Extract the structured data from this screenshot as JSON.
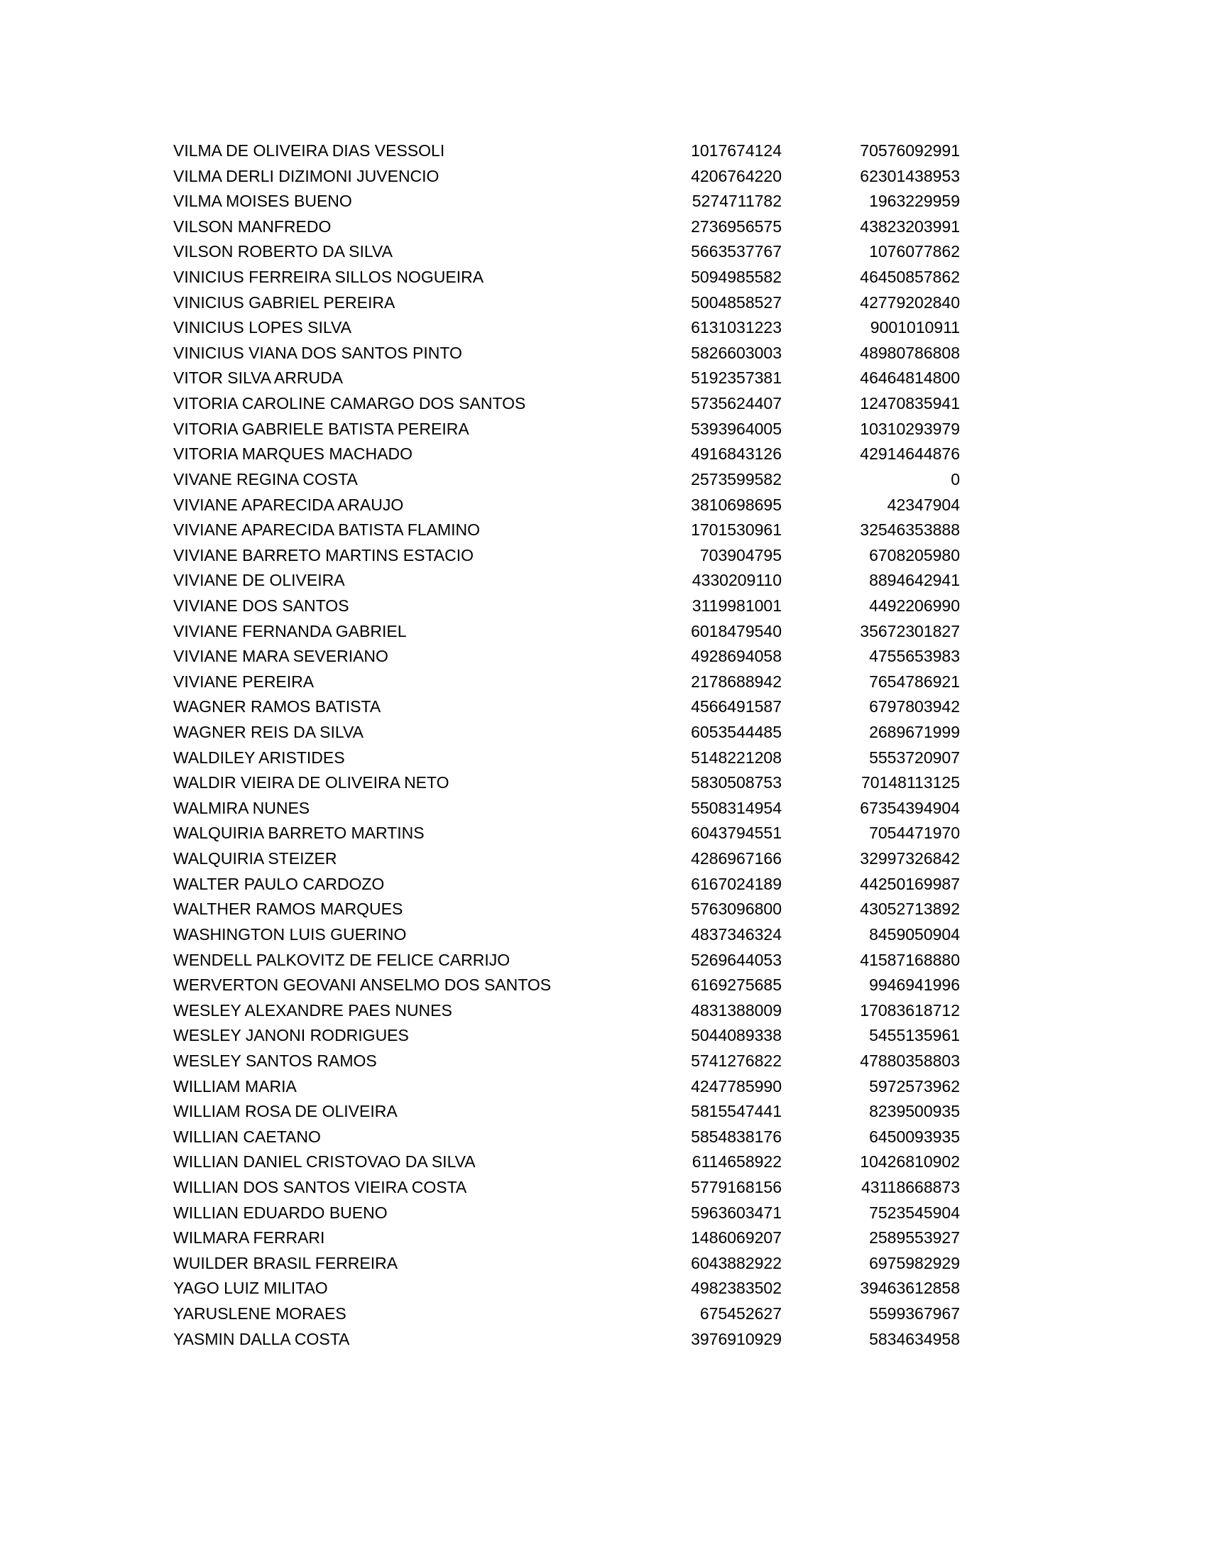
{
  "rows": [
    [
      "VILMA DE OLIVEIRA DIAS VESSOLI",
      "1017674124",
      "70576092991"
    ],
    [
      "VILMA DERLI DIZIMONI JUVENCIO",
      "4206764220",
      "62301438953"
    ],
    [
      "VILMA MOISES BUENO",
      "5274711782",
      "1963229959"
    ],
    [
      "VILSON MANFREDO",
      "2736956575",
      "43823203991"
    ],
    [
      "VILSON ROBERTO DA SILVA",
      "5663537767",
      "1076077862"
    ],
    [
      "VINICIUS FERREIRA SILLOS NOGUEIRA",
      "5094985582",
      "46450857862"
    ],
    [
      "VINICIUS GABRIEL PEREIRA",
      "5004858527",
      "42779202840"
    ],
    [
      "VINICIUS LOPES SILVA",
      "6131031223",
      "9001010911"
    ],
    [
      "VINICIUS VIANA DOS SANTOS PINTO",
      "5826603003",
      "48980786808"
    ],
    [
      "VITOR SILVA ARRUDA",
      "5192357381",
      "46464814800"
    ],
    [
      "VITORIA CAROLINE CAMARGO DOS SANTOS",
      "5735624407",
      "12470835941"
    ],
    [
      "VITORIA GABRIELE BATISTA PEREIRA",
      "5393964005",
      "10310293979"
    ],
    [
      "VITORIA MARQUES MACHADO",
      "4916843126",
      "42914644876"
    ],
    [
      "VIVANE REGINA COSTA",
      "2573599582",
      "0"
    ],
    [
      "VIVIANE APARECIDA ARAUJO",
      "3810698695",
      "42347904"
    ],
    [
      "VIVIANE APARECIDA BATISTA FLAMINO",
      "1701530961",
      "32546353888"
    ],
    [
      "VIVIANE BARRETO MARTINS ESTACIO",
      "703904795",
      "6708205980"
    ],
    [
      "VIVIANE DE OLIVEIRA",
      "4330209110",
      "8894642941"
    ],
    [
      "VIVIANE DOS SANTOS",
      "3119981001",
      "4492206990"
    ],
    [
      "VIVIANE FERNANDA GABRIEL",
      "6018479540",
      "35672301827"
    ],
    [
      "VIVIANE MARA SEVERIANO",
      "4928694058",
      "4755653983"
    ],
    [
      "VIVIANE PEREIRA",
      "2178688942",
      "7654786921"
    ],
    [
      "WAGNER RAMOS BATISTA",
      "4566491587",
      "6797803942"
    ],
    [
      "WAGNER REIS DA SILVA",
      "6053544485",
      "2689671999"
    ],
    [
      "WALDILEY ARISTIDES",
      "5148221208",
      "5553720907"
    ],
    [
      "WALDIR VIEIRA DE OLIVEIRA NETO",
      "5830508753",
      "70148113125"
    ],
    [
      "WALMIRA NUNES",
      "5508314954",
      "67354394904"
    ],
    [
      "WALQUIRIA BARRETO MARTINS",
      "6043794551",
      "7054471970"
    ],
    [
      "WALQUIRIA STEIZER",
      "4286967166",
      "32997326842"
    ],
    [
      "WALTER PAULO CARDOZO",
      "6167024189",
      "44250169987"
    ],
    [
      "WALTHER RAMOS MARQUES",
      "5763096800",
      "43052713892"
    ],
    [
      "WASHINGTON LUIS GUERINO",
      "4837346324",
      "8459050904"
    ],
    [
      "WENDELL PALKOVITZ DE FELICE CARRIJO",
      "5269644053",
      "41587168880"
    ],
    [
      "WERVERTON GEOVANI ANSELMO DOS SANTOS",
      "6169275685",
      "9946941996"
    ],
    [
      "WESLEY ALEXANDRE PAES NUNES",
      "4831388009",
      "17083618712"
    ],
    [
      "WESLEY JANONI RODRIGUES",
      "5044089338",
      "5455135961"
    ],
    [
      "WESLEY SANTOS RAMOS",
      "5741276822",
      "47880358803"
    ],
    [
      "WILLIAM MARIA",
      "4247785990",
      "5972573962"
    ],
    [
      "WILLIAM ROSA DE OLIVEIRA",
      "5815547441",
      "8239500935"
    ],
    [
      "WILLIAN CAETANO",
      "5854838176",
      "6450093935"
    ],
    [
      "WILLIAN DANIEL CRISTOVAO DA SILVA",
      "6114658922",
      "10426810902"
    ],
    [
      "WILLIAN DOS SANTOS VIEIRA COSTA",
      "5779168156",
      "43118668873"
    ],
    [
      "WILLIAN EDUARDO BUENO",
      "5963603471",
      "7523545904"
    ],
    [
      "WILMARA FERRARI",
      "1486069207",
      "2589553927"
    ],
    [
      "WUILDER BRASIL FERREIRA",
      "6043882922",
      "6975982929"
    ],
    [
      "YAGO LUIZ MILITAO",
      "4982383502",
      "39463612858"
    ],
    [
      "YARUSLENE MORAES",
      "675452627",
      "5599367967"
    ],
    [
      "YASMIN DALLA COSTA",
      "3976910929",
      "5834634958"
    ]
  ]
}
